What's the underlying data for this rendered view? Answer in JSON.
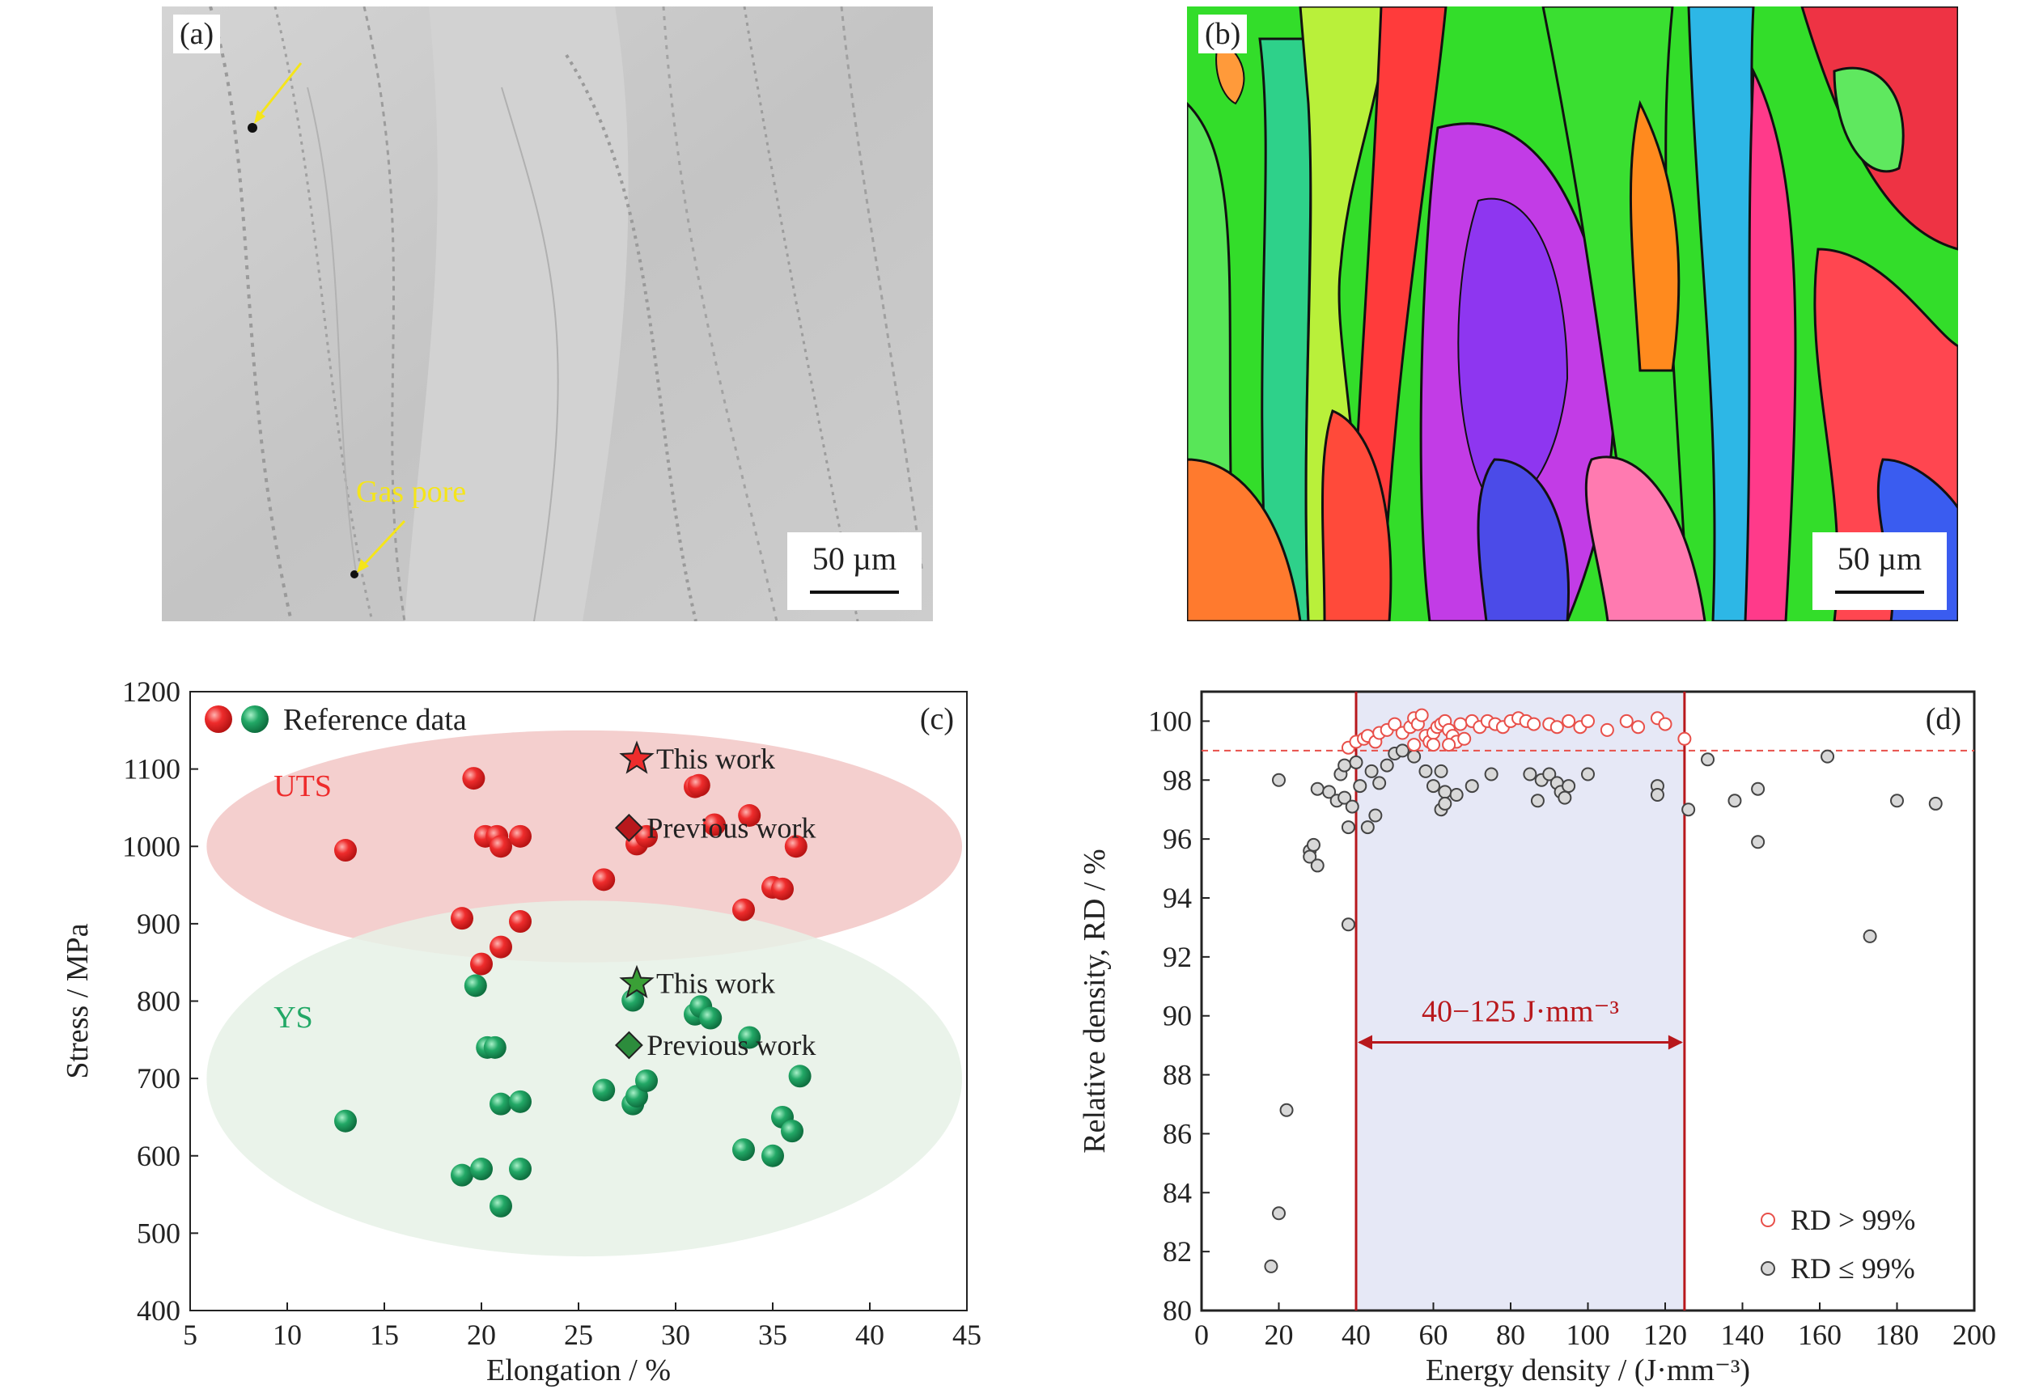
{
  "panel_a": {
    "tag": "(a)",
    "scale_label": "50 µm",
    "annotation": "Gas pore",
    "colors": {
      "micrograph": "#c9c9c9",
      "arrow": "#f5e51a"
    }
  },
  "panel_b": {
    "tag": "(b)",
    "scale_label": "50 µm",
    "colors": {
      "grain_green": "#33dd2a",
      "grain_magenta": "#cc33ee",
      "grain_red": "#ee3344",
      "grain_blue": "#3355ee",
      "grain_orange": "#ff8a1e"
    }
  },
  "chart_data": [
    {
      "panel": "(c)",
      "type": "scatter",
      "xlabel": "Elongation / %",
      "ylabel": "Stress / MPa",
      "xlim": [
        5,
        45
      ],
      "ylim": [
        400,
        1200
      ],
      "xticks": [
        5,
        10,
        15,
        20,
        25,
        30,
        35,
        40,
        45
      ],
      "yticks": [
        400,
        500,
        600,
        700,
        800,
        900,
        1000,
        1100,
        1200
      ],
      "legend": {
        "label": "Reference data",
        "placement": "top-left"
      },
      "group_labels": [
        "UTS",
        "YS"
      ],
      "colors": {
        "uts": "#ee2c2c",
        "ys": "#22a866",
        "uts_ellipse": "#f2c7c5",
        "ys_ellipse": "#e6f1e6",
        "diamond": "#b8181c",
        "diamond_ys": "#2c8c3c"
      },
      "series": [
        {
          "name": "UTS",
          "points": [
            [
              13,
              995
            ],
            [
              19.6,
              1088
            ],
            [
              20.2,
              1013
            ],
            [
              20.8,
              1013
            ],
            [
              21,
              1000
            ],
            [
              22,
              1013
            ],
            [
              19,
              907
            ],
            [
              22,
              903
            ],
            [
              21,
              870
            ],
            [
              20,
              848
            ],
            [
              26.3,
              957
            ],
            [
              28,
              1003
            ],
            [
              28.5,
              1013
            ],
            [
              31,
              1077
            ],
            [
              31.2,
              1079
            ],
            [
              32,
              1028
            ],
            [
              33.8,
              1040
            ],
            [
              33.5,
              918
            ],
            [
              35,
              947
            ],
            [
              35.5,
              945
            ],
            [
              36.2,
              1000
            ]
          ]
        },
        {
          "name": "YS",
          "points": [
            [
              13,
              645
            ],
            [
              19.7,
              820
            ],
            [
              20.3,
              740
            ],
            [
              20.7,
              740
            ],
            [
              21,
              667
            ],
            [
              22,
              670
            ],
            [
              19,
              575
            ],
            [
              20,
              583
            ],
            [
              22,
              583
            ],
            [
              21,
              535
            ],
            [
              26.3,
              685
            ],
            [
              27.8,
              667
            ],
            [
              28,
              677
            ],
            [
              28.5,
              697
            ],
            [
              27.8,
              801
            ],
            [
              31,
              783
            ],
            [
              31.3,
              793
            ],
            [
              31.8,
              778
            ],
            [
              33.8,
              753
            ],
            [
              33.5,
              608
            ],
            [
              35,
              600
            ],
            [
              35.5,
              650
            ],
            [
              36,
              632
            ],
            [
              36.4,
              703
            ]
          ]
        },
        {
          "name": "This work",
          "marker": "star",
          "points": [
            [
              28,
              1113
            ],
            [
              28,
              823
            ]
          ]
        },
        {
          "name": "Previous work",
          "marker": "diamond",
          "points": [
            [
              27.6,
              1024
            ],
            [
              27.6,
              743
            ]
          ]
        }
      ]
    },
    {
      "panel": "(d)",
      "type": "scatter",
      "xlabel": "Energy density / (J·mm⁻³)",
      "ylabel": "Relative density, RD / %",
      "xlim": [
        0,
        200
      ],
      "ylim": [
        80,
        101
      ],
      "xticks": [
        0,
        20,
        40,
        60,
        80,
        100,
        120,
        140,
        160,
        180,
        200
      ],
      "yticks": [
        80,
        82,
        84,
        86,
        88,
        90,
        92,
        94,
        96,
        98,
        100
      ],
      "threshold": 99,
      "window": [
        40,
        125
      ],
      "window_label": "40−125 J·mm⁻³",
      "legend": {
        "placement": "bottom-right"
      },
      "colors": {
        "high": "#e8504a",
        "low": "#444444",
        "window_fill": "#e6e8f6",
        "window_line": "#b8181c"
      },
      "series": [
        {
          "name": "RD > 99%",
          "points": [
            [
              38,
              99.1
            ],
            [
              40,
              99.3
            ],
            [
              42,
              99.4
            ],
            [
              43,
              99.5
            ],
            [
              45,
              99.3
            ],
            [
              46,
              99.6
            ],
            [
              48,
              99.7
            ],
            [
              50,
              99.9
            ],
            [
              52,
              99.6
            ],
            [
              54,
              99.8
            ],
            [
              55,
              100.1
            ],
            [
              56,
              99.9
            ],
            [
              57,
              100.2
            ],
            [
              58,
              99.5
            ],
            [
              59,
              99.3
            ],
            [
              60,
              99.6
            ],
            [
              61,
              99.8
            ],
            [
              62,
              99.9
            ],
            [
              63,
              100.0
            ],
            [
              64,
              99.7
            ],
            [
              65,
              99.5
            ],
            [
              66,
              99.3
            ],
            [
              67,
              99.9
            ],
            [
              68,
              99.4
            ],
            [
              70,
              100.0
            ],
            [
              72,
              99.8
            ],
            [
              74,
              100.0
            ],
            [
              76,
              99.9
            ],
            [
              78,
              99.8
            ],
            [
              80,
              100.0
            ],
            [
              82,
              100.1
            ],
            [
              84,
              100.0
            ],
            [
              86,
              99.9
            ],
            [
              90,
              99.9
            ],
            [
              92,
              99.8
            ],
            [
              95,
              100.0
            ],
            [
              98,
              99.8
            ],
            [
              100,
              100.0
            ],
            [
              105,
              99.7
            ],
            [
              110,
              100.0
            ],
            [
              113,
              99.8
            ],
            [
              118,
              100.1
            ],
            [
              120,
              99.9
            ],
            [
              125,
              99.4
            ],
            [
              55,
              99.2
            ],
            [
              60,
              99.2
            ],
            [
              64,
              99.2
            ]
          ]
        },
        {
          "name": "RD ≤ 99%",
          "points": [
            [
              18,
              81.5
            ],
            [
              20,
              83.3
            ],
            [
              20,
              98.0
            ],
            [
              22,
              86.8
            ],
            [
              28,
              95.6
            ],
            [
              28,
              95.4
            ],
            [
              29,
              95.8
            ],
            [
              30,
              95.1
            ],
            [
              30,
              97.7
            ],
            [
              33,
              97.6
            ],
            [
              35,
              97.3
            ],
            [
              36,
              98.2
            ],
            [
              37,
              97.4
            ],
            [
              37,
              98.5
            ],
            [
              38,
              96.4
            ],
            [
              38,
              93.1
            ],
            [
              39,
              97.1
            ],
            [
              40,
              98.6
            ],
            [
              41,
              97.8
            ],
            [
              43,
              96.4
            ],
            [
              44,
              98.3
            ],
            [
              45,
              96.8
            ],
            [
              46,
              97.9
            ],
            [
              48,
              98.5
            ],
            [
              50,
              98.9
            ],
            [
              52,
              99.0
            ],
            [
              55,
              98.8
            ],
            [
              58,
              98.3
            ],
            [
              60,
              97.8
            ],
            [
              62,
              98.3
            ],
            [
              62,
              97.0
            ],
            [
              63,
              97.6
            ],
            [
              63,
              97.2
            ],
            [
              66,
              97.5
            ],
            [
              70,
              97.8
            ],
            [
              75,
              98.2
            ],
            [
              85,
              98.2
            ],
            [
              87,
              97.3
            ],
            [
              88,
              98.0
            ],
            [
              90,
              98.2
            ],
            [
              92,
              97.9
            ],
            [
              93,
              97.6
            ],
            [
              94,
              97.4
            ],
            [
              95,
              97.8
            ],
            [
              100,
              98.2
            ],
            [
              118,
              97.8
            ],
            [
              118,
              97.5
            ],
            [
              126,
              97.0
            ],
            [
              131,
              98.7
            ],
            [
              138,
              97.3
            ],
            [
              144,
              95.9
            ],
            [
              144,
              97.7
            ],
            [
              162,
              98.8
            ],
            [
              173,
              92.7
            ],
            [
              180,
              97.3
            ],
            [
              190,
              97.2
            ]
          ]
        }
      ]
    }
  ]
}
